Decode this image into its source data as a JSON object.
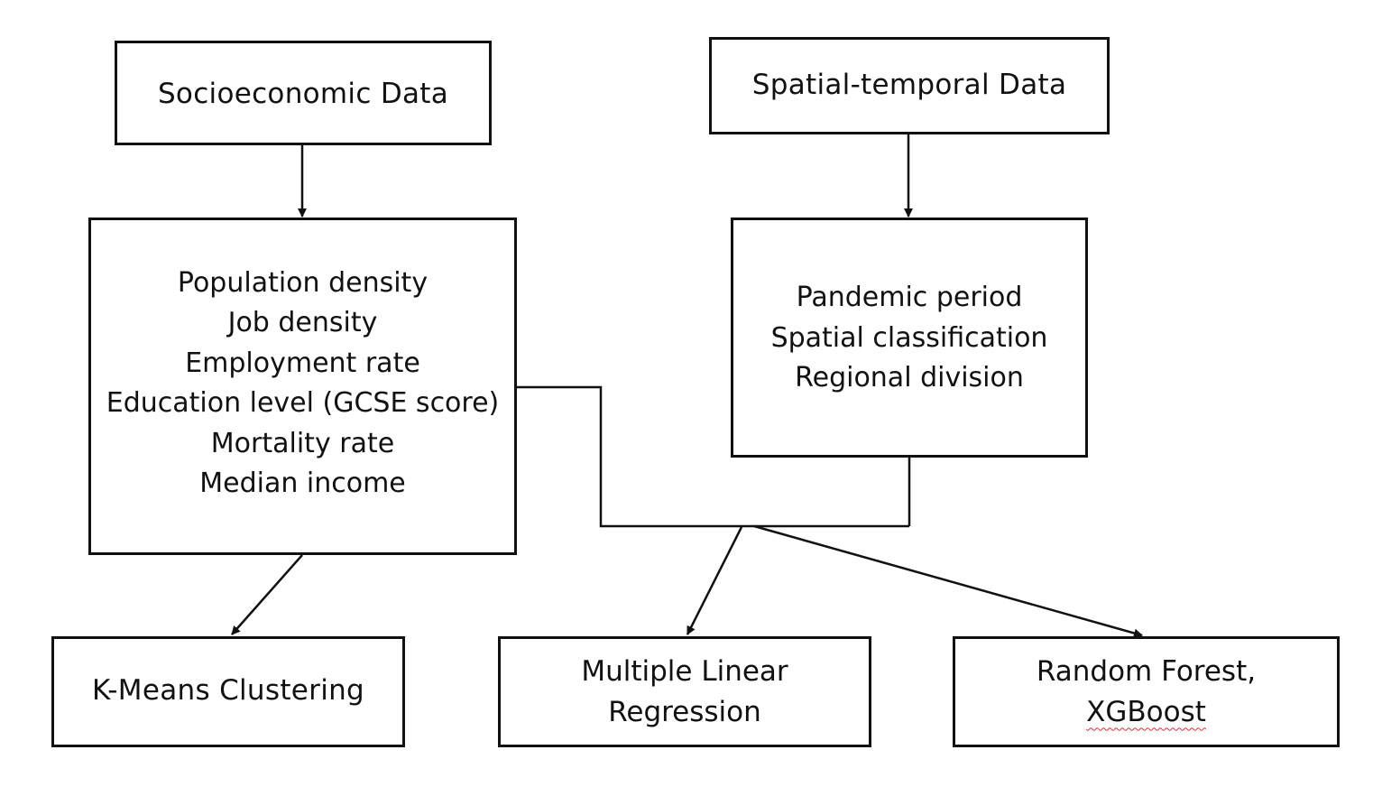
{
  "diagram": {
    "socioeconomic_title": "Socioeconomic Data",
    "spatial_temporal_title": "Spatial-temporal Data",
    "socioeconomic_variables": [
      "Population density",
      "Job density",
      "Employment rate",
      "Education level (GCSE score)",
      "Mortality rate",
      "Median income"
    ],
    "spatial_temporal_variables": [
      "Pandemic period",
      "Spatial classification",
      "Regional division"
    ],
    "kmeans": "K-Means Clustering",
    "mlr": {
      "line1": "Multiple Linear",
      "line2": "Regression"
    },
    "rf_xgb": {
      "line1": "Random Forest,",
      "line2": "XGBoost"
    }
  },
  "colors": {
    "line": "#111111",
    "spellcheck_underline": "#d22c2c"
  }
}
